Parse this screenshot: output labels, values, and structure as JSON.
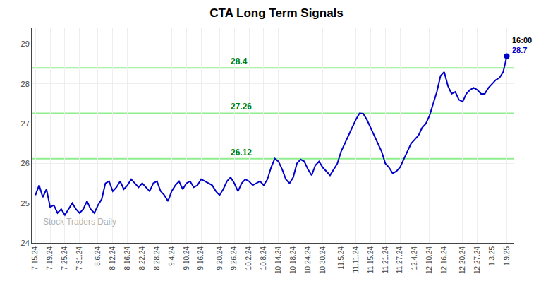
{
  "chart_data": {
    "type": "line",
    "title": "CTA Long Term Signals",
    "watermark": "Stock Traders Daily",
    "color": "#0000CC",
    "grid": true,
    "ylim": [
      24,
      29.4
    ],
    "yticks": [
      24,
      25,
      26,
      27,
      28,
      29
    ],
    "hlines": [
      {
        "value": 28.4,
        "label": "28.4",
        "color": "#90EE90"
      },
      {
        "value": 27.26,
        "label": "27.26",
        "color": "#90EE90"
      },
      {
        "value": 26.12,
        "label": "26.12",
        "color": "#90EE90"
      }
    ],
    "annotations": [
      "16:00",
      "28.7"
    ],
    "categories": [
      "7.15.24",
      null,
      null,
      null,
      "7.19.24",
      null,
      null,
      null,
      "7.25.24",
      null,
      null,
      null,
      "7.31.24",
      null,
      null,
      null,
      null,
      "8.6.24",
      null,
      null,
      null,
      "8.12.24",
      null,
      null,
      null,
      "8.16.24",
      null,
      null,
      null,
      "8.22.24",
      null,
      null,
      null,
      "8.28.24",
      null,
      null,
      null,
      "9.4.24",
      null,
      null,
      null,
      "9.10.24",
      null,
      null,
      null,
      "9.16.24",
      null,
      null,
      null,
      null,
      "9.20.24",
      null,
      null,
      null,
      "9.26.24",
      null,
      null,
      null,
      "10.2.24",
      null,
      null,
      null,
      "10.8.24",
      null,
      null,
      null,
      "10.14.24",
      null,
      null,
      null,
      "10.18.24",
      null,
      null,
      null,
      "10.24.24",
      null,
      null,
      null,
      "10.30.24",
      null,
      null,
      null,
      null,
      "11.5.24",
      null,
      null,
      null,
      "11.11.24",
      null,
      null,
      null,
      "11.15.24",
      null,
      null,
      null,
      "11.21.24",
      null,
      null,
      null,
      "11.27.24",
      null,
      null,
      null,
      "12.4.24",
      null,
      null,
      null,
      "12.10.24",
      null,
      null,
      null,
      "12.16.24",
      null,
      null,
      null,
      null,
      "12.20.24",
      null,
      null,
      null,
      "12.27.24",
      null,
      null,
      null,
      "1.3.25",
      null,
      null,
      null,
      "1.9.25"
    ],
    "values": [
      25.2,
      25.45,
      25.15,
      25.35,
      24.9,
      24.95,
      24.75,
      24.85,
      24.7,
      24.85,
      25.0,
      24.85,
      24.75,
      24.85,
      25.05,
      24.85,
      24.75,
      24.95,
      25.1,
      25.5,
      25.55,
      25.3,
      25.4,
      25.55,
      25.35,
      25.45,
      25.6,
      25.5,
      25.4,
      25.5,
      25.4,
      25.3,
      25.5,
      25.55,
      25.3,
      25.2,
      25.05,
      25.3,
      25.45,
      25.55,
      25.35,
      25.5,
      25.55,
      25.4,
      25.45,
      25.6,
      25.55,
      25.5,
      25.45,
      25.3,
      25.2,
      25.35,
      25.55,
      25.65,
      25.5,
      25.3,
      25.5,
      25.6,
      25.55,
      25.45,
      25.5,
      25.55,
      25.45,
      25.6,
      25.9,
      26.12,
      26.05,
      25.85,
      25.6,
      25.5,
      25.65,
      26.0,
      26.1,
      26.05,
      25.85,
      25.7,
      25.95,
      26.05,
      25.9,
      25.8,
      25.7,
      25.85,
      26.0,
      26.3,
      26.5,
      26.7,
      26.9,
      27.1,
      27.26,
      27.25,
      27.1,
      26.9,
      26.7,
      26.5,
      26.3,
      26.0,
      25.9,
      25.75,
      25.8,
      25.9,
      26.1,
      26.3,
      26.5,
      26.6,
      26.7,
      26.9,
      27.0,
      27.2,
      27.5,
      27.8,
      28.2,
      28.3,
      27.95,
      27.75,
      27.8,
      27.6,
      27.55,
      27.75,
      27.85,
      27.9,
      27.85,
      27.75,
      27.75,
      27.9,
      28.0,
      28.1,
      28.15,
      28.3,
      28.7
    ]
  }
}
